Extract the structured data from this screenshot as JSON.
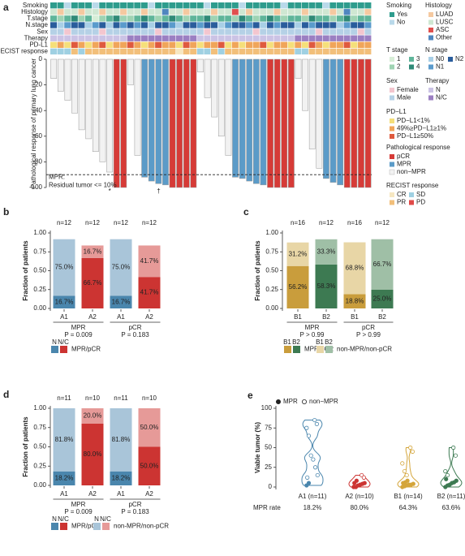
{
  "chart_data": [
    {
      "type": "waterfall",
      "panel": "a",
      "ylabel": "Pathological response of primary lung cancer",
      "ylim": [
        -100,
        0
      ],
      "yticks": [
        0,
        -20,
        -40,
        -60,
        -80,
        -100
      ],
      "values": [
        -15,
        -25,
        -32,
        -42,
        -55,
        -62,
        -72,
        -80,
        -88,
        -100,
        -100,
        -20,
        -75,
        -92,
        -95,
        -97,
        -98,
        -100,
        -100,
        -100,
        -100,
        -10,
        -30,
        -45,
        -60,
        -75,
        -92,
        -93,
        -95,
        -97,
        -98,
        -100,
        -100,
        -100,
        -100,
        -15,
        -40,
        -70,
        -85,
        -93,
        -96,
        -98,
        -100,
        -100,
        -100,
        -100
      ],
      "response": [
        2,
        2,
        2,
        2,
        2,
        2,
        2,
        2,
        2,
        0,
        0,
        2,
        2,
        1,
        1,
        1,
        1,
        0,
        0,
        0,
        0,
        2,
        2,
        2,
        2,
        2,
        1,
        1,
        1,
        1,
        1,
        0,
        0,
        0,
        0,
        2,
        2,
        2,
        2,
        1,
        1,
        1,
        0,
        0,
        0,
        0
      ],
      "bar_labels": [
        null,
        null,
        null,
        null,
        null,
        null,
        null,
        null,
        "*",
        null,
        null,
        null,
        null,
        null,
        null,
        "†",
        null,
        null,
        null,
        null,
        null,
        null,
        null,
        null,
        null,
        null,
        null,
        null,
        null,
        null,
        null,
        null,
        null,
        null,
        null,
        null,
        null,
        null,
        null,
        null,
        null,
        null,
        null,
        null,
        null,
        null
      ],
      "response_legend": {
        "title": "Pathological response",
        "levels": [
          {
            "label": "pCR",
            "color": "#d63b37"
          },
          {
            "label": "MPR",
            "color": "#5b9bc8"
          },
          {
            "label": "non−MPR",
            "color": "#f2f2f2"
          }
        ]
      },
      "reference_line": {
        "value": -90,
        "label": [
          "MPR:",
          "Residual tumor <= 10%"
        ]
      },
      "tracks": [
        {
          "name": "Smoking",
          "legend_title": "Smoking",
          "levels": [
            {
              "label": "Yes",
              "color": "#2e9c8d"
            },
            {
              "label": "No",
              "color": "#b9d9ea"
            }
          ],
          "values": [
            0,
            0,
            1,
            0,
            0,
            0,
            1,
            0,
            0,
            0,
            0,
            0,
            0,
            0,
            1,
            0,
            0,
            0,
            0,
            0,
            0,
            0,
            1,
            0,
            0,
            0,
            0,
            1,
            0,
            0,
            0,
            0,
            0,
            1,
            0,
            0,
            0,
            0,
            0,
            1,
            0,
            0,
            0,
            0,
            0,
            0
          ]
        },
        {
          "name": "Histology",
          "legend_title": "Histology",
          "levels": [
            {
              "label": "LUAD",
              "color": "#f5c9a0"
            },
            {
              "label": "LUSC",
              "color": "#cfe7d2"
            },
            {
              "label": "ASC",
              "color": "#e0504e"
            },
            {
              "label": "Other",
              "color": "#4f86bf"
            }
          ],
          "values": [
            1,
            0,
            1,
            1,
            0,
            1,
            1,
            0,
            1,
            1,
            0,
            1,
            1,
            0,
            1,
            1,
            3,
            1,
            1,
            0,
            1,
            1,
            1,
            0,
            1,
            1,
            2,
            1,
            0,
            1,
            1,
            1,
            0,
            1,
            1,
            1,
            0,
            1,
            1,
            1,
            0,
            1,
            3,
            1,
            1,
            0
          ]
        },
        {
          "name": "T.stage",
          "legend_title": "T stage",
          "levels": [
            {
              "label": "1",
              "color": "#d7eed7"
            },
            {
              "label": "2",
              "color": "#9fd3b3"
            },
            {
              "label": "3",
              "color": "#5fb59a"
            },
            {
              "label": "4",
              "color": "#2f8a77"
            }
          ],
          "values": [
            2,
            1,
            2,
            3,
            1,
            2,
            0,
            1,
            2,
            3,
            1,
            1,
            2,
            3,
            2,
            1,
            2,
            3,
            2,
            1,
            2,
            2,
            3,
            1,
            2,
            2,
            1,
            3,
            2,
            1,
            2,
            3,
            2,
            1,
            2,
            2,
            1,
            3,
            2,
            2,
            1,
            2,
            3,
            1,
            2,
            2
          ]
        },
        {
          "name": "N.stage",
          "legend_title": "N stage",
          "levels": [
            {
              "label": "N0",
              "color": "#a8cfe6"
            },
            {
              "label": "N1",
              "color": "#5a9bcc"
            },
            {
              "label": "N2",
              "color": "#2a5d9c"
            }
          ],
          "values": [
            2,
            0,
            1,
            2,
            2,
            0,
            1,
            2,
            0,
            2,
            1,
            2,
            1,
            2,
            0,
            2,
            2,
            1,
            0,
            2,
            2,
            1,
            2,
            2,
            0,
            1,
            2,
            2,
            1,
            2,
            0,
            2,
            1,
            2,
            2,
            0,
            2,
            1,
            2,
            2,
            2,
            0,
            1,
            2,
            2,
            1
          ]
        },
        {
          "name": "Sex",
          "legend_title": "Sex",
          "levels": [
            {
              "label": "Female",
              "color": "#f3c6cf"
            },
            {
              "label": "Male",
              "color": "#b5d1e6"
            }
          ],
          "values": [
            1,
            1,
            0,
            1,
            1,
            1,
            1,
            0,
            1,
            1,
            1,
            1,
            1,
            1,
            1,
            0,
            1,
            1,
            1,
            1,
            1,
            1,
            0,
            1,
            1,
            1,
            1,
            1,
            1,
            0,
            1,
            1,
            1,
            1,
            1,
            1,
            1,
            1,
            0,
            1,
            1,
            1,
            1,
            1,
            0,
            1
          ]
        },
        {
          "name": "Therapy",
          "legend_title": "Therapy",
          "levels": [
            {
              "label": "N",
              "color": "#cbc3e5"
            },
            {
              "label": "N/C",
              "color": "#9b7fc2"
            }
          ],
          "values": [
            0,
            0,
            0,
            0,
            0,
            0,
            0,
            0,
            0,
            0,
            0,
            1,
            1,
            1,
            1,
            1,
            1,
            1,
            1,
            1,
            1,
            0,
            0,
            0,
            0,
            0,
            0,
            0,
            0,
            0,
            0,
            0,
            0,
            0,
            0,
            1,
            1,
            1,
            1,
            1,
            1,
            1,
            1,
            1,
            1,
            1
          ]
        },
        {
          "name": "PD-L1",
          "legend_title": "PD−L1",
          "levels": [
            {
              "label": "PD−L1<1%",
              "color": "#f5df7a"
            },
            {
              "label": "49%≥PD−L1≥1%",
              "color": "#f0a55a"
            },
            {
              "label": "PD−L1≥50%",
              "color": "#df5a3e"
            }
          ],
          "values": [
            0,
            1,
            0,
            2,
            1,
            0,
            1,
            2,
            0,
            1,
            1,
            2,
            1,
            0,
            1,
            2,
            1,
            1,
            0,
            2,
            1,
            0,
            1,
            1,
            2,
            0,
            1,
            0,
            1,
            1,
            2,
            0,
            1,
            1,
            0,
            1,
            0,
            2,
            1,
            0,
            1,
            1,
            2,
            0,
            1,
            1
          ]
        },
        {
          "name": "RECIST response",
          "legend_title": "RECIST response",
          "levels": [
            {
              "label": "CR",
              "color": "#f6e7c2"
            },
            {
              "label": "PR",
              "color": "#f2bf7a"
            },
            {
              "label": "SD",
              "color": "#9fd0e2"
            },
            {
              "label": "PD",
              "color": "#e04a48"
            }
          ],
          "values": [
            2,
            2,
            2,
            1,
            2,
            1,
            1,
            1,
            1,
            1,
            1,
            1,
            1,
            1,
            1,
            1,
            1,
            1,
            0,
            1,
            1,
            2,
            2,
            1,
            2,
            1,
            1,
            1,
            1,
            1,
            1,
            1,
            1,
            1,
            1,
            2,
            2,
            1,
            1,
            1,
            1,
            1,
            1,
            1,
            1,
            1
          ]
        }
      ]
    },
    {
      "type": "stacked_bar",
      "panel": "b",
      "ylabel": "Fraction of patients",
      "ylim": [
        0,
        1
      ],
      "yticks": [
        {
          "value": 0,
          "label": "0.00"
        },
        {
          "value": 0.25,
          "label": "0.25"
        },
        {
          "value": 0.5,
          "label": "0.50"
        },
        {
          "value": 0.75,
          "label": "0.75"
        },
        {
          "value": 1,
          "label": "1.00"
        }
      ],
      "categories": [
        "A1",
        "A2",
        "A1",
        "A2"
      ],
      "n_labels": [
        "n=12",
        "n=12",
        "n=12",
        "n=12"
      ],
      "groups": [
        {
          "label": "MPR",
          "p": "P = 0.009"
        },
        {
          "label": "pCR",
          "p": "P = 0.183"
        }
      ],
      "series": [
        {
          "name": "MPR/pCR",
          "legend_keys": [
            "N",
            "N/C"
          ],
          "colors": [
            "#4a86ad",
            "#cc3432",
            "#4a86ad",
            "#cc3432"
          ],
          "values": [
            0.167,
            0.667,
            0.167,
            0.417
          ],
          "value_labels": [
            "16.7%",
            "66.7%",
            "16.7%",
            "41.7%"
          ]
        },
        {
          "colors": [
            "#a9c5d9",
            "#e69a98",
            "#a9c5d9",
            "#e69a98"
          ],
          "values": [
            0.75,
            0.167,
            0.75,
            0.417
          ],
          "value_labels": [
            "75.0%",
            "16.7%",
            "75.0%",
            "41.7%"
          ]
        }
      ]
    },
    {
      "type": "stacked_bar",
      "panel": "c",
      "ylabel": "Fraction of patients",
      "ylim": [
        0,
        1
      ],
      "yticks": [
        {
          "value": 0,
          "label": "0.00"
        },
        {
          "value": 0.25,
          "label": "0.25"
        },
        {
          "value": 0.5,
          "label": "0.50"
        },
        {
          "value": 0.75,
          "label": "0.75"
        },
        {
          "value": 1,
          "label": "1.00"
        }
      ],
      "categories": [
        "B1",
        "B2",
        "B1",
        "B2"
      ],
      "n_labels": [
        "n=16",
        "n=12",
        "n=16",
        "n=12"
      ],
      "groups": [
        {
          "label": "MPR",
          "p": "P > 0.99"
        },
        {
          "label": "pCR",
          "p": "P > 0.99"
        }
      ],
      "series": [
        {
          "name": "MPR/pCR",
          "legend_keys": [
            "B1",
            "B2"
          ],
          "colors": [
            "#c99d3c",
            "#3d7a52",
            "#c99d3c",
            "#3d7a52"
          ],
          "values": [
            0.562,
            0.583,
            0.188,
            0.25
          ],
          "value_labels": [
            "56.2%",
            "58.3%",
            "18.8%",
            "25.0%"
          ]
        },
        {
          "name": "non-MPR/non-pCR",
          "legend_keys": [
            "B1",
            "B2"
          ],
          "colors": [
            "#e8d6a6",
            "#9fbfa6",
            "#e8d6a6",
            "#9fbfa6"
          ],
          "values": [
            0.312,
            0.333,
            0.688,
            0.667
          ],
          "value_labels": [
            "31.2%",
            "33.3%",
            "68.8%",
            "66.7%"
          ]
        }
      ]
    },
    {
      "type": "stacked_bar",
      "panel": "d",
      "ylabel": "Fraction of patients",
      "ylim": [
        0,
        1
      ],
      "yticks": [
        {
          "value": 0,
          "label": "0.00"
        },
        {
          "value": 0.25,
          "label": "0.25"
        },
        {
          "value": 0.5,
          "label": "0.50"
        },
        {
          "value": 0.75,
          "label": "0.75"
        },
        {
          "value": 1,
          "label": "1.00"
        }
      ],
      "categories": [
        "A1",
        "A2",
        "A1",
        "A2"
      ],
      "n_labels": [
        "n=11",
        "n=10",
        "n=11",
        "n=10"
      ],
      "groups": [
        {
          "label": "MPR",
          "p": "P = 0.009"
        },
        {
          "label": "pCR",
          "p": "P = 0.183"
        }
      ],
      "series": [
        {
          "name": "MPR/pCR",
          "legend_keys": [
            "N",
            "N/C"
          ],
          "colors": [
            "#4a86ad",
            "#cc3432",
            "#4a86ad",
            "#cc3432"
          ],
          "values": [
            0.182,
            0.8,
            0.182,
            0.5
          ],
          "value_labels": [
            "18.2%",
            "80.0%",
            "18.2%",
            "50.0%"
          ]
        },
        {
          "name": "non-MPR/non-pCR",
          "legend_keys": [
            "N",
            "N/C"
          ],
          "colors": [
            "#a9c5d9",
            "#e69a98",
            "#a9c5d9",
            "#e69a98"
          ],
          "values": [
            0.818,
            0.2,
            0.818,
            0.5
          ],
          "value_labels": [
            "81.8%",
            "20.0%",
            "81.8%",
            "50.0%"
          ]
        }
      ]
    },
    {
      "type": "violin",
      "panel": "e",
      "ylabel": "Viable tumor (%)",
      "ylim": [
        0,
        100
      ],
      "yticks": [
        0,
        25,
        50,
        75,
        100
      ],
      "categories": [
        "A1 (n=11)",
        "A2 (n=10)",
        "B1 (n=14)",
        "B2 (n=11)"
      ],
      "colors": [
        "#4a86ad",
        "#cc3432",
        "#d4a53a",
        "#3d7a52"
      ],
      "series": [
        {
          "name": "MPR",
          "filled": true,
          "values": [
            [
              2,
              5
            ],
            [
              0,
              0,
              2,
              3,
              4,
              5,
              5,
              8
            ],
            [
              0,
              1,
              2,
              3,
              3,
              4,
              5,
              6,
              8
            ],
            [
              0,
              2,
              3,
              5,
              6,
              8,
              10
            ]
          ]
        },
        {
          "name": "non−MPR",
          "filled": false,
          "values": [
            [
              85,
              80,
              75,
              65,
              40,
              35,
              25,
              15,
              12
            ],
            [
              15,
              12
            ],
            [
              50,
              45,
              30,
              20,
              15
            ],
            [
              50,
              40,
              20,
              15
            ]
          ]
        }
      ],
      "rate_title": "MPR rate",
      "rates": [
        18.2,
        80.0,
        64.3,
        63.6
      ],
      "rate_labels": [
        "18.2%",
        "80.0%",
        "64.3%",
        "63.6%"
      ]
    }
  ]
}
